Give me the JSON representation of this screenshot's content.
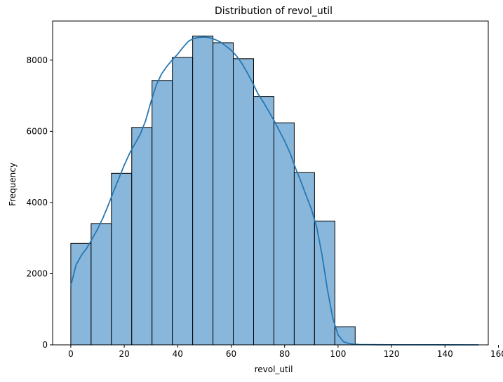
{
  "chart_data": {
    "type": "bar",
    "title": "Distribution of revol_util",
    "xlabel": "revol_util",
    "ylabel": "Frequency",
    "xlim": [
      -6.8,
      156.2
    ],
    "ylim": [
      0,
      9100
    ],
    "xticks": [
      0,
      20,
      40,
      60,
      80,
      100,
      120,
      140,
      160
    ],
    "yticks": [
      0,
      2000,
      4000,
      6000,
      8000
    ],
    "bin_width": 7.6,
    "bins": [
      {
        "x0": 0.0,
        "x1": 7.6,
        "count": 2850
      },
      {
        "x0": 7.6,
        "x1": 15.2,
        "count": 3410
      },
      {
        "x0": 15.2,
        "x1": 22.8,
        "count": 4820
      },
      {
        "x0": 22.8,
        "x1": 30.4,
        "count": 6110
      },
      {
        "x0": 30.4,
        "x1": 38.0,
        "count": 7430
      },
      {
        "x0": 38.0,
        "x1": 45.6,
        "count": 8080
      },
      {
        "x0": 45.6,
        "x1": 53.2,
        "count": 8680
      },
      {
        "x0": 53.2,
        "x1": 60.8,
        "count": 8490
      },
      {
        "x0": 60.8,
        "x1": 68.4,
        "count": 8040
      },
      {
        "x0": 68.4,
        "x1": 76.0,
        "count": 6980
      },
      {
        "x0": 76.0,
        "x1": 83.6,
        "count": 6240
      },
      {
        "x0": 83.6,
        "x1": 91.2,
        "count": 4840
      },
      {
        "x0": 91.2,
        "x1": 98.8,
        "count": 3480
      },
      {
        "x0": 98.8,
        "x1": 106.4,
        "count": 510
      }
    ],
    "kde": {
      "x": [
        0,
        2,
        4,
        6,
        8,
        10,
        12,
        14,
        16,
        18,
        20,
        22,
        24,
        26,
        28,
        30,
        32,
        34,
        36,
        38,
        40,
        42,
        44,
        46,
        48,
        50,
        52,
        54,
        56,
        58,
        60,
        62,
        64,
        66,
        68,
        70,
        72,
        74,
        76,
        78,
        80,
        82,
        84,
        86,
        88,
        90,
        92,
        94,
        96,
        98,
        100,
        102,
        104,
        106,
        108,
        110,
        115,
        120,
        130,
        140,
        152.6
      ],
      "y": [
        1660,
        2250,
        2520,
        2720,
        2980,
        3250,
        3560,
        3920,
        4310,
        4680,
        5050,
        5380,
        5650,
        5920,
        6300,
        6830,
        7300,
        7620,
        7830,
        8010,
        8170,
        8360,
        8530,
        8610,
        8640,
        8650,
        8630,
        8580,
        8510,
        8400,
        8280,
        8120,
        7910,
        7650,
        7370,
        7060,
        6830,
        6570,
        6310,
        6020,
        5730,
        5400,
        4980,
        4610,
        4210,
        3820,
        3310,
        2530,
        1560,
        760,
        280,
        90,
        40,
        20,
        10,
        8,
        4,
        3,
        2,
        1,
        0
      ]
    },
    "colors": {
      "bar_fill": "#89b7dc",
      "bar_edge": "#000000",
      "kde_line": "#2678b2",
      "axes": "#000000"
    },
    "grid": false,
    "legend": "none"
  }
}
